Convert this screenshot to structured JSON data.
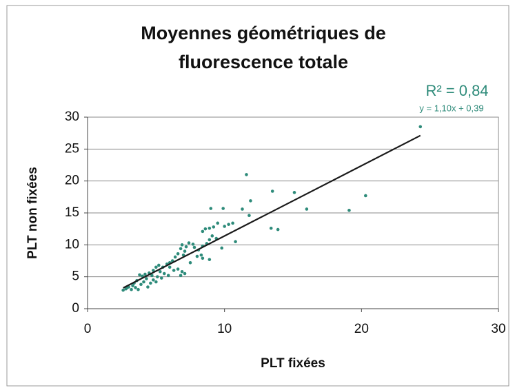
{
  "chart_data": {
    "type": "scatter",
    "title": [
      "Moyennes géométriques de",
      "fluorescence totale"
    ],
    "xlabel": "PLT fixées",
    "ylabel": "PLT non fixées",
    "annotations": [
      "R² = 0,84",
      "y = 1,10x + 0,39"
    ],
    "color": "#2e8b7a",
    "x": [
      24.3,
      20.3,
      19.1,
      16.0,
      15.1,
      13.5,
      13.4,
      13.9,
      11.6,
      11.9,
      11.3,
      11.8,
      9.9,
      9.0,
      10.6,
      10.3,
      10.0,
      10.8,
      9.8,
      9.5,
      9.2,
      8.9,
      8.6,
      8.4,
      9.1,
      9.4,
      8.9,
      8.7,
      8.4,
      8.1,
      8.3,
      8.0,
      8.4,
      8.9,
      7.7,
      7.4,
      7.8,
      7.2,
      6.9,
      6.8,
      7.1,
      6.6,
      7.0,
      6.4,
      6.2,
      6.0,
      5.8,
      6.6,
      6.9,
      7.1,
      6.8,
      6.3,
      5.9,
      5.5,
      5.2,
      5.0,
      4.8,
      5.3,
      5.6,
      5.1,
      4.7,
      4.5,
      4.2,
      4.0,
      3.8,
      4.3,
      4.8,
      5.0,
      4.6,
      4.1,
      3.6,
      3.4,
      3.9,
      3.3,
      3.0,
      2.8,
      2.6,
      3.2,
      3.5,
      4.4,
      3.7,
      2.9,
      5.4,
      6.0,
      7.5
    ],
    "values": [
      28.5,
      17.7,
      15.4,
      15.6,
      18.2,
      18.4,
      12.6,
      12.4,
      21.0,
      16.9,
      15.6,
      14.6,
      15.7,
      15.7,
      13.4,
      13.2,
      12.9,
      10.5,
      9.5,
      13.4,
      12.8,
      12.6,
      12.5,
      12.1,
      11.4,
      11.0,
      10.8,
      10.2,
      9.8,
      9.2,
      8.4,
      8.2,
      7.9,
      7.7,
      10.1,
      10.3,
      9.6,
      9.7,
      10.0,
      9.4,
      9.0,
      8.6,
      8.4,
      8.1,
      7.5,
      7.2,
      7.0,
      6.2,
      5.8,
      5.5,
      5.2,
      6.0,
      5.2,
      6.5,
      6.8,
      6.5,
      6.0,
      5.8,
      5.5,
      5.0,
      5.2,
      5.6,
      5.4,
      5.1,
      5.3,
      4.7,
      4.5,
      4.2,
      4.0,
      4.2,
      4.4,
      4.0,
      3.8,
      3.6,
      3.4,
      3.1,
      2.9,
      3.0,
      3.3,
      3.4,
      3.0,
      3.3,
      4.8,
      6.5,
      7.2
    ],
    "trendline": {
      "slope": 1.1,
      "intercept": 0.39,
      "x": [
        2.6,
        24.3
      ],
      "color": "#1a1a1a"
    },
    "xlim": [
      0,
      30
    ],
    "xticks": [
      0,
      10,
      20,
      30
    ],
    "ylim": [
      0,
      30
    ],
    "yticks": [
      0,
      5,
      10,
      15,
      20,
      25,
      30
    ],
    "grid": true
  }
}
